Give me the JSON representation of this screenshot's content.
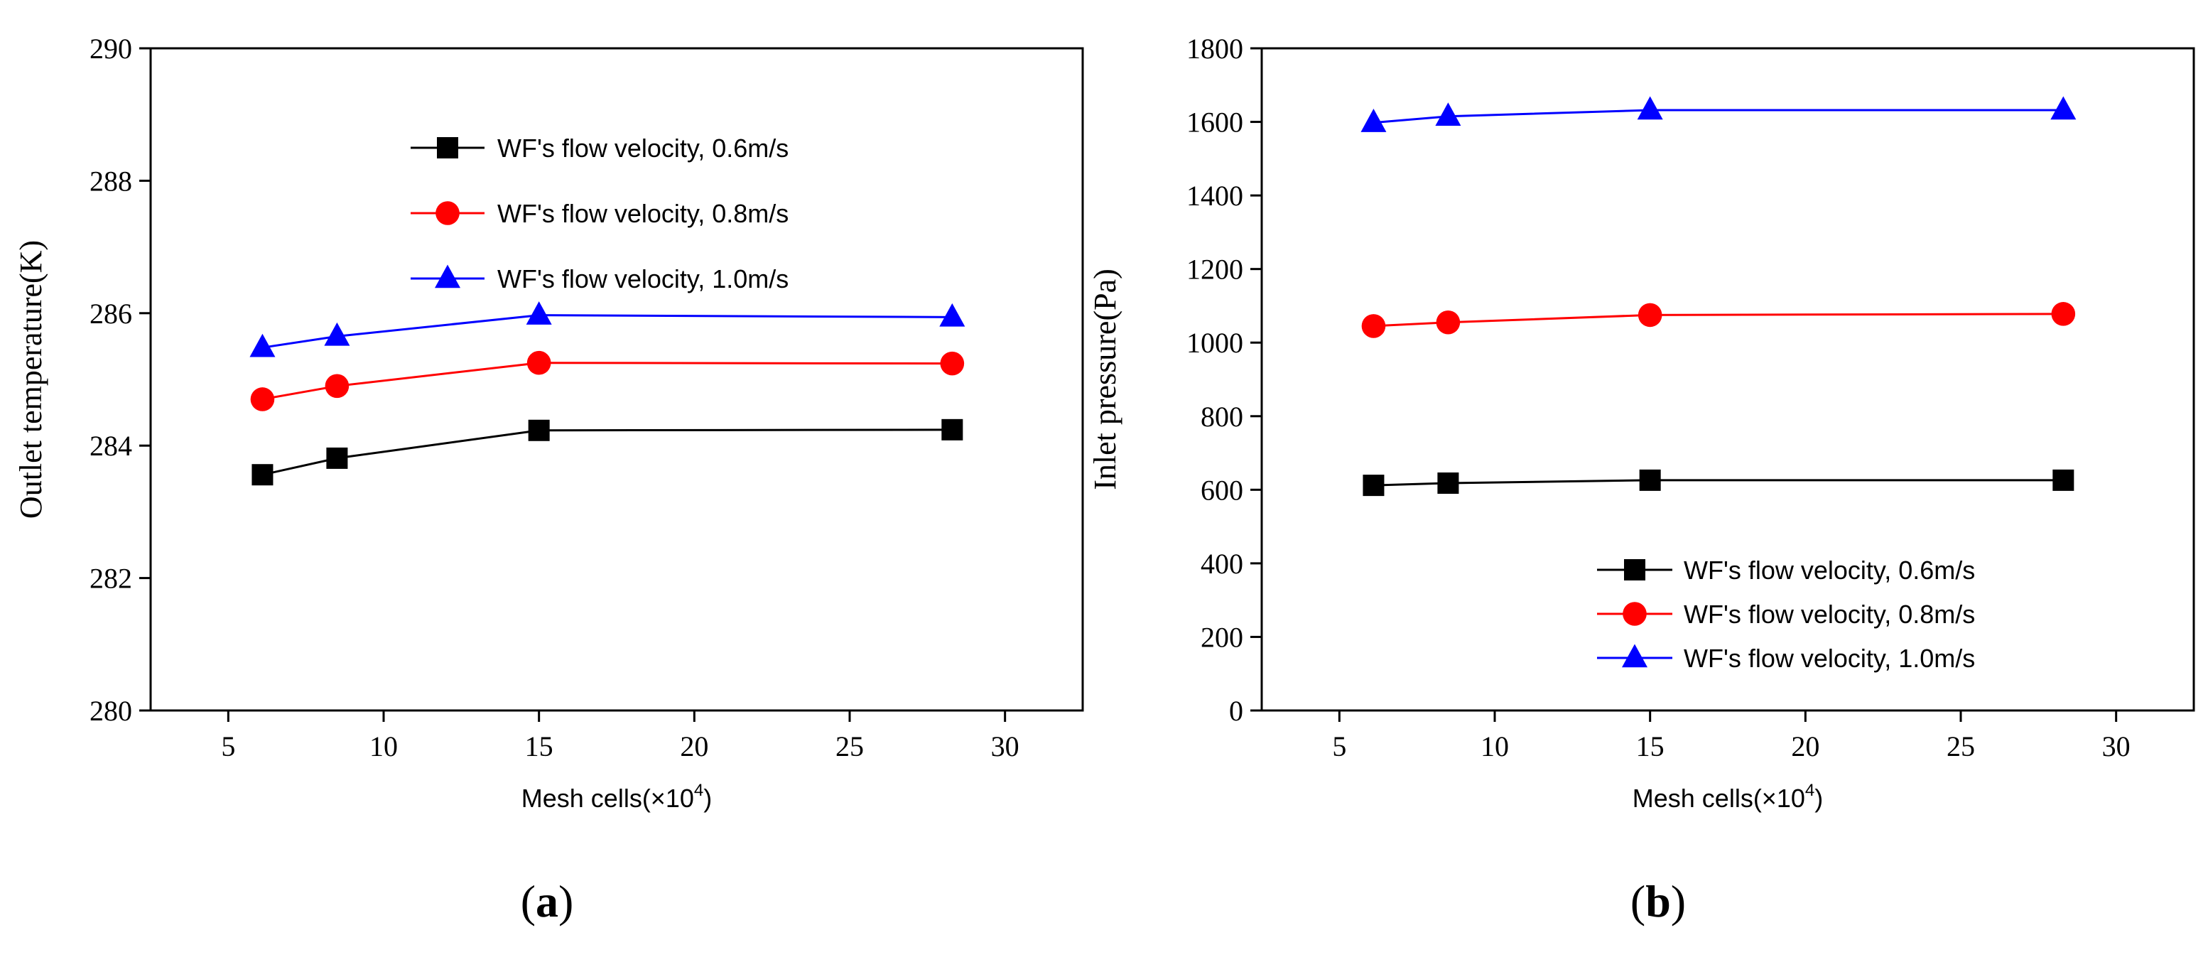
{
  "chart_data": [
    {
      "type": "line",
      "panel_label": "a",
      "title": "",
      "xlabel": "Mesh cells(×10",
      "xlabel_exponent": "4",
      "xlabel_suffix": ")",
      "ylabel": "Outlet temperature(K)",
      "xlim": [
        2.5,
        32.5
      ],
      "ylim": [
        280,
        290
      ],
      "xticks": [
        5,
        10,
        15,
        20,
        25,
        30
      ],
      "yticks": [
        280,
        282,
        284,
        286,
        288,
        290
      ],
      "legend_position": "top-center",
      "x": [
        6.1,
        8.5,
        15.0,
        28.3
      ],
      "series": [
        {
          "name": "WF's flow velocity, 0.6m/s",
          "color": "#000000",
          "marker": "square",
          "values": [
            283.56,
            283.81,
            284.23,
            284.24
          ]
        },
        {
          "name": "WF's flow velocity, 0.8m/s",
          "color": "#ff0000",
          "marker": "circle",
          "values": [
            284.7,
            284.9,
            285.25,
            285.24
          ]
        },
        {
          "name": "WF's flow velocity, 1.0m/s",
          "color": "#0000ff",
          "marker": "triangle",
          "values": [
            285.48,
            285.65,
            285.97,
            285.94
          ]
        }
      ]
    },
    {
      "type": "line",
      "panel_label": "b",
      "title": "",
      "xlabel": "Mesh cells(×10",
      "xlabel_exponent": "4",
      "xlabel_suffix": ")",
      "ylabel": "Inlet pressure(Pa)",
      "xlim": [
        2.5,
        32.5
      ],
      "ylim": [
        0,
        1800
      ],
      "xticks": [
        5,
        10,
        15,
        20,
        25,
        30
      ],
      "yticks": [
        0,
        200,
        400,
        600,
        800,
        1000,
        1200,
        1400,
        1600,
        1800
      ],
      "legend_position": "bottom-right",
      "x": [
        6.1,
        8.5,
        15.0,
        28.3
      ],
      "series": [
        {
          "name": "WF's flow velocity, 0.6m/s",
          "color": "#000000",
          "marker": "square",
          "values": [
            612,
            618,
            626,
            626
          ]
        },
        {
          "name": "WF's flow velocity, 0.8m/s",
          "color": "#ff0000",
          "marker": "circle",
          "values": [
            1045,
            1055,
            1075,
            1078
          ]
        },
        {
          "name": "WF's flow velocity, 1.0m/s",
          "color": "#0000ff",
          "marker": "triangle",
          "values": [
            1598,
            1615,
            1632,
            1632
          ]
        }
      ]
    }
  ]
}
